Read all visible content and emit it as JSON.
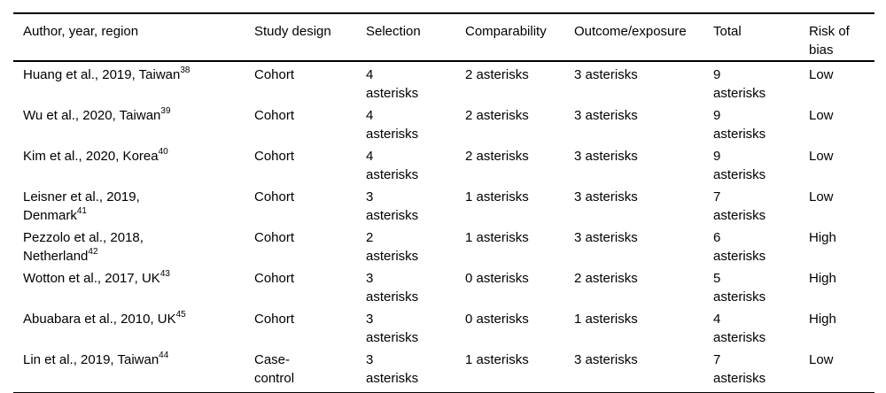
{
  "page": {
    "background_color": "#ffffff",
    "text_color": "#000000",
    "rule_color": "#000000"
  },
  "table": {
    "columns": [
      "Author, year, region",
      "Study design",
      "Selection",
      "Comparability",
      "Outcome/exposure",
      "Total",
      "Risk of bias"
    ],
    "rows": [
      {
        "author": "Huang et al., 2019, Taiwan",
        "ref": "38",
        "design": "Cohort",
        "selection": "4\nasterisks",
        "comparability": "2 asterisks",
        "outcome": "3 asterisks",
        "total": "9\nasterisks",
        "risk": "Low"
      },
      {
        "author": "Wu et al., 2020, Taiwan",
        "ref": "39",
        "design": "Cohort",
        "selection": "4\nasterisks",
        "comparability": "2 asterisks",
        "outcome": "3 asterisks",
        "total": "9\nasterisks",
        "risk": "Low"
      },
      {
        "author": "Kim et al., 2020, Korea",
        "ref": "40",
        "design": "Cohort",
        "selection": "4\nasterisks",
        "comparability": "2 asterisks",
        "outcome": "3 asterisks",
        "total": "9\nasterisks",
        "risk": "Low"
      },
      {
        "author": "Leisner et al., 2019,\nDenmark",
        "ref": "41",
        "design": "Cohort",
        "selection": "3\nasterisks",
        "comparability": "1 asterisks",
        "outcome": "3 asterisks",
        "total": "7\nasterisks",
        "risk": "Low"
      },
      {
        "author": "Pezzolo et al., 2018,\nNetherland",
        "ref": "42",
        "design": "Cohort",
        "selection": "2\nasterisks",
        "comparability": "1 asterisks",
        "outcome": "3 asterisks",
        "total": "6\nasterisks",
        "risk": "High"
      },
      {
        "author": "Wotton et al., 2017, UK",
        "ref": "43",
        "design": "Cohort",
        "selection": "3\nasterisks",
        "comparability": "0 asterisks",
        "outcome": "2 asterisks",
        "total": "5\nasterisks",
        "risk": "High"
      },
      {
        "author": "Abuabara et al., 2010, UK",
        "ref": "45",
        "design": "Cohort",
        "selection": "3\nasterisks",
        "comparability": "0 asterisks",
        "outcome": "1 asterisks",
        "total": "4\nasterisks",
        "risk": "High"
      },
      {
        "author": "Lin et al., 2019, Taiwan",
        "ref": "44",
        "design": "Case-\ncontrol",
        "selection": "3\nasterisks",
        "comparability": "1 asterisks",
        "outcome": "3 asterisks",
        "total": "7\nasterisks",
        "risk": "Low"
      }
    ]
  }
}
